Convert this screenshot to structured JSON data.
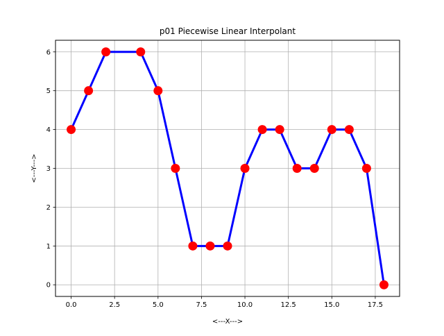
{
  "chart_data": {
    "type": "line",
    "title": "p01 Piecewise Linear Interpolant",
    "xlabel": "<---X--->",
    "ylabel": "<---Y--->",
    "xlim": [
      -0.9,
      18.9
    ],
    "ylim": [
      -0.3,
      6.3
    ],
    "xticks": [
      0.0,
      2.5,
      5.0,
      7.5,
      10.0,
      12.5,
      15.0,
      17.5
    ],
    "xtick_labels": [
      "0.0",
      "2.5",
      "5.0",
      "7.5",
      "10.0",
      "12.5",
      "15.0",
      "17.5"
    ],
    "yticks": [
      0,
      1,
      2,
      3,
      4,
      5,
      6
    ],
    "ytick_labels": [
      "0",
      "1",
      "2",
      "3",
      "4",
      "5",
      "6"
    ],
    "grid": true,
    "series": [
      {
        "x": [
          0,
          1,
          2,
          3,
          4,
          5,
          6,
          7,
          8,
          9,
          10,
          11,
          12,
          13,
          14,
          15,
          16,
          17,
          18
        ],
        "y": [
          4,
          5,
          6,
          6,
          6,
          5,
          3,
          1,
          1,
          1,
          3,
          4,
          4,
          3,
          3,
          4,
          4,
          3,
          0
        ],
        "line_color": "#0000ff"
      },
      {
        "x": [
          0,
          1,
          2,
          4,
          5,
          6,
          7,
          8,
          9,
          10,
          11,
          12,
          13,
          14,
          15,
          16,
          17,
          18
        ],
        "y": [
          4,
          5,
          6,
          6,
          5,
          3,
          1,
          1,
          1,
          3,
          4,
          4,
          3,
          3,
          4,
          4,
          3,
          0
        ],
        "marker_color": "#ff0000"
      }
    ]
  }
}
